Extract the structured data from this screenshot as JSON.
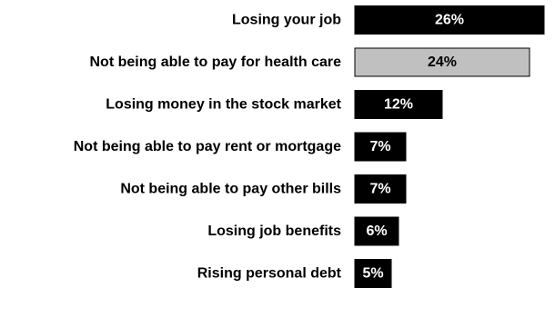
{
  "chart_data": {
    "type": "bar",
    "orientation": "horizontal",
    "categories": [
      "Losing your job",
      "Not being able to pay for health care",
      "Losing money in the stock market",
      "Not being able to pay rent or mortgage",
      "Not being able to pay other bills",
      "Losing job benefits",
      "Rising personal debt"
    ],
    "values": [
      26,
      24,
      12,
      7,
      7,
      6,
      5
    ],
    "value_labels": [
      "26%",
      "24%",
      "12%",
      "7%",
      "7%",
      "6%",
      "5%"
    ],
    "bar_colors": [
      "#000000",
      "#c0c0c0",
      "#000000",
      "#000000",
      "#000000",
      "#000000",
      "#000000"
    ],
    "label_colors": [
      "#ffffff",
      "#000000",
      "#ffffff",
      "#ffffff",
      "#ffffff",
      "#ffffff",
      "#ffffff"
    ],
    "xlim": [
      0,
      28
    ],
    "grid": false,
    "legend": "none"
  }
}
